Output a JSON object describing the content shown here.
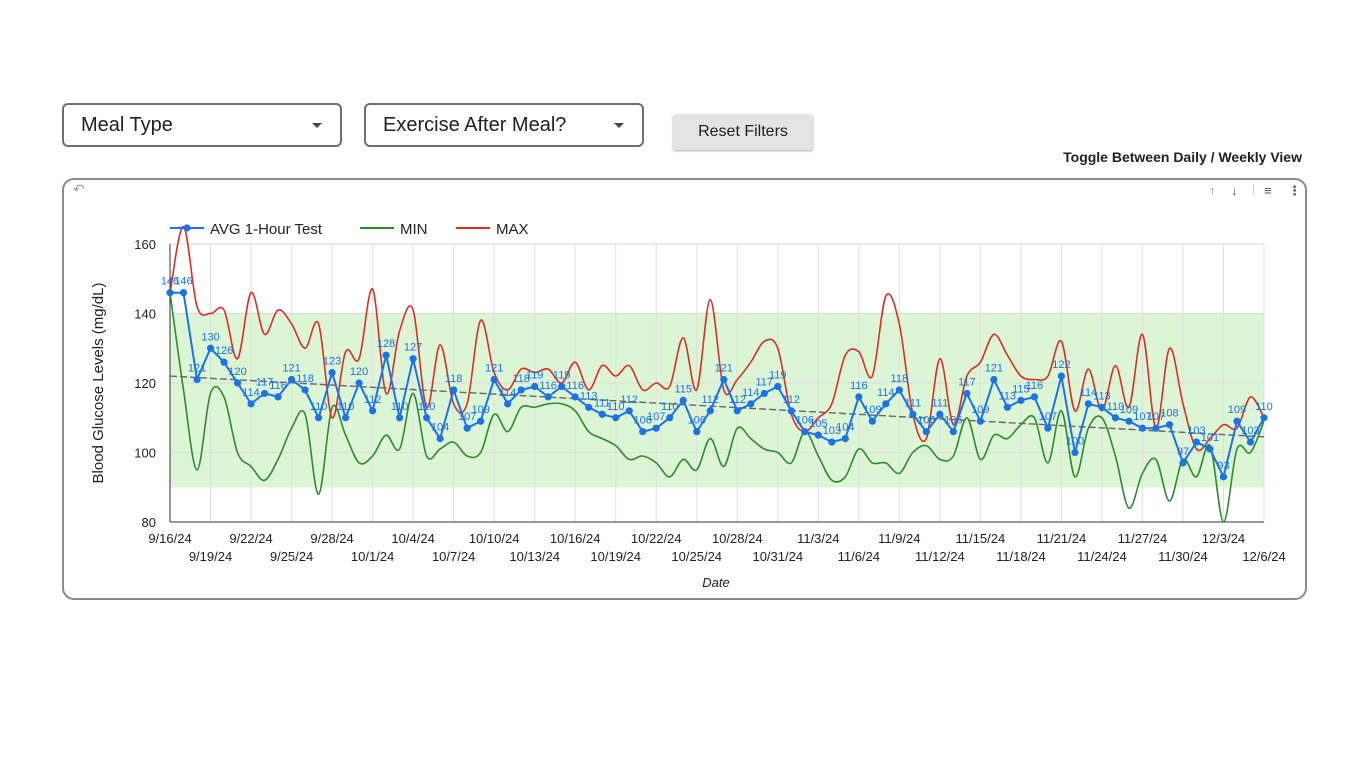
{
  "filters": {
    "meal_type_label": "Meal Type",
    "exercise_label": "Exercise After Meal?",
    "reset_label": "Reset Filters",
    "toggle_label": "Toggle Between Daily / Weekly View"
  },
  "toolbar": {
    "undo_icon": "undo-icon",
    "sort_up_icon": "arrow-up-icon",
    "sort_down_icon": "arrow-down-icon",
    "filter_icon": "filter-icon",
    "more_icon": "more-vert-icon"
  },
  "chart_data": {
    "type": "line",
    "title": "",
    "xlabel": "Date",
    "ylabel": "Blood Glucose Levels (mg/dL)",
    "ylim": [
      80,
      160
    ],
    "y_ticks": [
      80,
      100,
      120,
      140,
      160
    ],
    "target_range": [
      90,
      140
    ],
    "start_date": "2024-09-16",
    "end_date": "2024-12-06",
    "x_tick_labels": [
      "9/16/24",
      "9/19/24",
      "9/22/24",
      "9/25/24",
      "9/28/24",
      "10/1/24",
      "10/4/24",
      "10/7/24",
      "10/10/24",
      "10/13/24",
      "10/16/24",
      "10/19/24",
      "10/22/24",
      "10/25/24",
      "10/28/24",
      "10/31/24",
      "11/3/24",
      "11/6/24",
      "11/9/24",
      "11/12/24",
      "11/15/24",
      "11/18/24",
      "11/21/24",
      "11/24/24",
      "11/27/24",
      "11/30/24",
      "12/3/24",
      "12/6/24"
    ],
    "legend": {
      "position": "top-left"
    },
    "grid": true,
    "trendline": [
      122,
      104.5
    ],
    "colors": {
      "avg": "#1a73e8",
      "min": "#2e8b2e",
      "max": "#d93025",
      "target": "#dcf5d4",
      "trend": "#666666"
    },
    "series": [
      {
        "name": "AVG 1-Hour Test",
        "values": [
          146,
          146,
          121,
          130,
          126,
          120,
          114,
          117,
          116,
          121,
          118,
          110,
          123,
          110,
          120,
          112,
          128,
          110,
          127,
          110,
          104,
          118,
          107,
          109,
          121,
          114,
          118,
          119,
          116,
          119,
          116,
          113,
          111,
          110,
          112,
          106,
          107,
          110,
          115,
          106,
          112,
          121,
          112,
          114,
          117,
          119,
          112,
          106,
          105,
          103,
          104,
          116,
          109,
          114,
          118,
          111,
          106,
          111,
          106,
          117,
          109,
          121,
          113,
          115,
          116,
          107,
          122,
          100,
          114,
          113,
          110,
          109,
          107,
          107,
          108,
          97,
          103,
          101,
          93,
          109,
          103,
          110
        ]
      },
      {
        "name": "MIN",
        "values": [
          146,
          118,
          95,
          117,
          116,
          100,
          96,
          92,
          98,
          107,
          111,
          88,
          113,
          105,
          97,
          99,
          105,
          101,
          117,
          99,
          101,
          103,
          99,
          100,
          111,
          106,
          113,
          113,
          114,
          114,
          112,
          106,
          104,
          102,
          98,
          99,
          97,
          93,
          98,
          95,
          104,
          96,
          107,
          104,
          101,
          100,
          97,
          106,
          99,
          92,
          93,
          101,
          97,
          97,
          94,
          100,
          102,
          98,
          99,
          110,
          98,
          105,
          104,
          108,
          110,
          97,
          112,
          93,
          107,
          110,
          99,
          84,
          94,
          98,
          86,
          98,
          93,
          102,
          80,
          101,
          100,
          109
        ]
      },
      {
        "name": "MAX",
        "values": [
          146,
          165,
          142,
          140,
          141,
          127,
          146,
          134,
          141,
          137,
          130,
          137,
          110,
          129,
          127,
          147,
          117,
          135,
          141,
          113,
          131,
          114,
          114,
          138,
          123,
          118,
          124,
          123,
          124,
          120,
          126,
          118,
          125,
          122,
          125,
          118,
          120,
          119,
          133,
          118,
          144,
          118,
          121,
          126,
          132,
          130,
          111,
          106,
          110,
          114,
          128,
          129,
          122,
          145,
          137,
          111,
          104,
          127,
          108,
          122,
          126,
          134,
          128,
          122,
          121,
          122,
          132,
          112,
          124,
          112,
          125,
          113,
          134,
          107,
          130,
          114,
          101,
          104,
          108,
          107,
          116,
          110
        ]
      }
    ],
    "avg_labels": [
      "146",
      "146",
      "121",
      "130",
      "126",
      "120",
      "114",
      "117",
      "116",
      "121",
      "118",
      "110",
      "123",
      "110",
      "120",
      "112",
      "128",
      "110",
      "127",
      "110",
      "104",
      "118",
      "107",
      "109",
      "121",
      "114",
      "118",
      "119",
      "116",
      "119",
      "116",
      "113",
      "111",
      "110",
      "112",
      "106",
      "107",
      "110",
      "115",
      "106",
      "112",
      "121",
      "112",
      "114",
      "117",
      "119",
      "112",
      "106",
      "105",
      "103",
      "104",
      "116",
      "109",
      "114",
      "118",
      "111",
      "106",
      "111",
      "106",
      "117",
      "109",
      "121",
      "113",
      "115",
      "116",
      "107",
      "122",
      "100",
      "114",
      "113",
      "110",
      "109",
      "107",
      "107",
      "108",
      "97",
      "103",
      "101",
      "93",
      "109",
      "103",
      "110"
    ]
  }
}
